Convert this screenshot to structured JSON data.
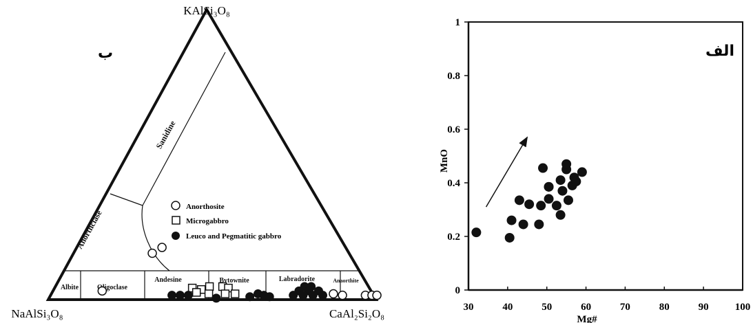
{
  "ternary_panel": {
    "panel_label": "ب",
    "vertex_top": "KAlSi₃O₈",
    "vertex_left": "NaAlSi₃O₈",
    "vertex_right": "CaAl₂Si₂O₈",
    "fields": {
      "sanidine": "Sanidine",
      "anorthoclase": "Anorthclase",
      "albite": "Albite",
      "oligoclase": "Oligoclase",
      "andesine": "Andesine",
      "bytownite": "Bytownite",
      "labradorite": "Labradorite",
      "anorthite": "Anaorthite"
    },
    "legend": [
      {
        "symbol": "open-circle",
        "label": "Anorthosite"
      },
      {
        "symbol": "open-square",
        "label": "Microgabbro"
      },
      {
        "symbol": "filled-circle",
        "label": "Leuco and Pegmatitic gabbro"
      }
    ]
  },
  "scatter_panel": {
    "panel_label": "الف",
    "xlabel": "Mg#",
    "ylabel": "MnO",
    "x_ticks": [
      "30",
      "40",
      "50",
      "60",
      "70",
      "80",
      "90",
      "100"
    ],
    "y_ticks": [
      "0",
      "0.2",
      "0.4",
      "0.6",
      "0.8",
      "1"
    ]
  },
  "chart_data": [
    {
      "type": "scatter",
      "subtype": "ternary",
      "vertices": [
        "KAlSi₃O₈",
        "NaAlSi₃O₈",
        "CaAl₂Si₂O₈"
      ],
      "series": [
        {
          "name": "Anorthosite",
          "marker": "open-circle",
          "points": [
            {
              "or": 16,
              "an": 24
            },
            {
              "or": 18,
              "an": 26
            },
            {
              "or": 3,
              "an": 15
            },
            {
              "or": 2,
              "an": 86
            },
            {
              "or": 1.5,
              "an": 89
            },
            {
              "or": 1.5,
              "an": 96
            },
            {
              "or": 1.5,
              "an": 98
            },
            {
              "or": 1.5,
              "an": 99.5
            }
          ]
        },
        {
          "name": "Microgabbro",
          "marker": "open-square",
          "points": [
            {
              "or": 4,
              "an": 42
            },
            {
              "or": 3.5,
              "an": 45
            },
            {
              "or": 4.5,
              "an": 47
            },
            {
              "or": 4.5,
              "an": 51
            },
            {
              "or": 4,
              "an": 53
            },
            {
              "or": 2.5,
              "an": 44
            },
            {
              "or": 2,
              "an": 48
            },
            {
              "or": 2,
              "an": 53
            },
            {
              "or": 2,
              "an": 56
            }
          ]
        },
        {
          "name": "Leuco and Pegmatitic gabbro",
          "marker": "filled-circle",
          "points": [
            {
              "or": 1.5,
              "an": 37
            },
            {
              "or": 1.5,
              "an": 39.5
            },
            {
              "or": 1.5,
              "an": 42
            },
            {
              "or": 0.5,
              "an": 51
            },
            {
              "or": 2,
              "an": 63
            },
            {
              "or": 1.5,
              "an": 65
            },
            {
              "or": 1,
              "an": 61
            },
            {
              "or": 1,
              "an": 67
            },
            {
              "or": 4.5,
              "an": 76
            },
            {
              "or": 4.5,
              "an": 78
            },
            {
              "or": 3,
              "an": 75
            },
            {
              "or": 3,
              "an": 78
            },
            {
              "or": 3,
              "an": 81
            },
            {
              "or": 1.5,
              "an": 74
            },
            {
              "or": 1.5,
              "an": 77
            },
            {
              "or": 1.5,
              "an": 80
            },
            {
              "or": 1.5,
              "an": 83
            }
          ]
        }
      ]
    },
    {
      "type": "scatter",
      "xlabel": "Mg#",
      "ylabel": "MnO",
      "xlim": [
        30,
        100
      ],
      "ylim": [
        0,
        1
      ],
      "x": [
        32,
        40.5,
        41,
        43,
        44,
        45.5,
        48,
        48.5,
        49,
        50.5,
        50.5,
        50.5,
        52.5,
        53.5,
        53.5,
        54,
        55,
        55,
        55.5,
        56.5,
        57,
        57.5,
        59
      ],
      "y": [
        0.215,
        0.195,
        0.26,
        0.335,
        0.245,
        0.32,
        0.245,
        0.315,
        0.455,
        0.34,
        0.385,
        0.385,
        0.315,
        0.41,
        0.28,
        0.37,
        0.45,
        0.47,
        0.335,
        0.39,
        0.42,
        0.405,
        0.44
      ],
      "annotation": {
        "type": "arrow",
        "from": [
          34.5,
          0.31
        ],
        "to": [
          45,
          0.57
        ]
      }
    }
  ]
}
